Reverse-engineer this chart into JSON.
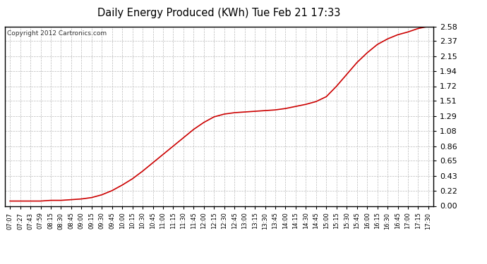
{
  "title": "Daily Energy Produced (KWh) Tue Feb 21 17:33",
  "copyright_text": "Copyright 2012 Cartronics.com",
  "background_color": "#ffffff",
  "plot_bg_color": "#ffffff",
  "grid_color": "#bbbbbb",
  "line_color": "#cc0000",
  "line_width": 1.2,
  "x_tick_labels": [
    "07:07",
    "07:27",
    "07:43",
    "07:59",
    "08:15",
    "08:30",
    "08:45",
    "09:00",
    "09:15",
    "09:30",
    "09:45",
    "10:00",
    "10:15",
    "10:30",
    "10:45",
    "11:00",
    "11:15",
    "11:30",
    "11:45",
    "12:00",
    "12:15",
    "12:30",
    "12:45",
    "13:00",
    "13:15",
    "13:30",
    "13:45",
    "14:00",
    "14:15",
    "14:30",
    "14:45",
    "15:00",
    "15:15",
    "15:30",
    "15:45",
    "16:00",
    "16:15",
    "16:30",
    "16:45",
    "17:00",
    "17:15",
    "17:30"
  ],
  "y_ticks": [
    0.0,
    0.22,
    0.43,
    0.65,
    0.86,
    1.08,
    1.29,
    1.51,
    1.72,
    1.94,
    2.15,
    2.37,
    2.58
  ],
  "y_min": 0.0,
  "y_max": 2.58,
  "data_y": [
    0.07,
    0.07,
    0.07,
    0.07,
    0.08,
    0.08,
    0.09,
    0.1,
    0.12,
    0.16,
    0.22,
    0.3,
    0.39,
    0.5,
    0.62,
    0.74,
    0.86,
    0.98,
    1.1,
    1.2,
    1.28,
    1.32,
    1.34,
    1.35,
    1.36,
    1.37,
    1.38,
    1.4,
    1.43,
    1.46,
    1.5,
    1.57,
    1.72,
    1.89,
    2.06,
    2.2,
    2.32,
    2.4,
    2.46,
    2.5,
    2.55,
    2.58
  ]
}
